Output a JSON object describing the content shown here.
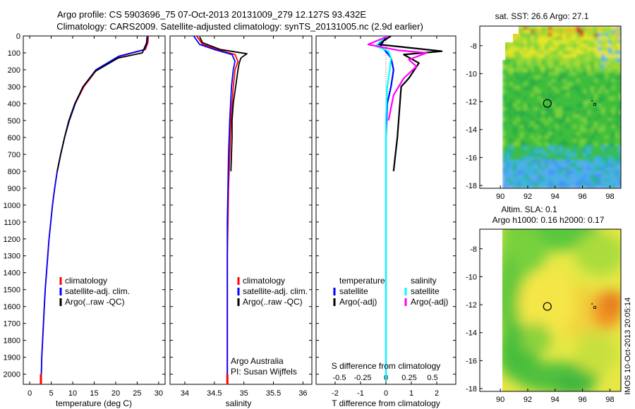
{
  "header": {
    "title_line1": "Argo profile: CS 5903696_75 07-Oct-2013 20131009_279 12.127S 93.432E",
    "title_line2": "Climatology: CARS2009. Satellite-adjusted climatology: synTS_20131005.nc (2.9d earlier)"
  },
  "colors": {
    "climatology": "#ff0000",
    "satellite": "#0000ff",
    "argo": "#000000",
    "salinity_argo": "#ff00ff",
    "salinity_sat": "#00ffff"
  },
  "chart_data": [
    {
      "id": "temperature",
      "type": "line",
      "xlabel": "temperature (deg C)",
      "ylabel": "",
      "xlim": [
        -1.5,
        31.5
      ],
      "ylim": [
        2060,
        0
      ],
      "xticks": [
        0,
        5,
        10,
        15,
        20,
        25,
        30
      ],
      "yticks": [
        0,
        100,
        200,
        300,
        400,
        500,
        600,
        700,
        800,
        900,
        1000,
        1100,
        1200,
        1300,
        1400,
        1500,
        1600,
        1700,
        1800,
        1900,
        2000
      ],
      "series": [
        {
          "name": "climatology",
          "color": "#ff0000",
          "x": [
            27.6,
            27.5,
            26.9,
            21.0,
            15.6,
            12.6,
            10.6,
            9.2,
            8.1,
            7.2,
            6.4,
            5.8,
            5.3,
            4.9,
            4.5,
            4.2,
            3.9,
            3.6,
            3.4,
            3.2,
            3.0,
            2.8,
            2.7,
            2.6
          ],
          "y": [
            0,
            40,
            80,
            120,
            200,
            300,
            400,
            500,
            600,
            700,
            800,
            900,
            1000,
            1100,
            1200,
            1300,
            1400,
            1500,
            1600,
            1700,
            1800,
            1900,
            2000,
            2040
          ]
        },
        {
          "name": "satellite-adj. clim.",
          "color": "#0000ff",
          "x": [
            27.4,
            27.3,
            26.7,
            20.7,
            15.4,
            12.4,
            10.6,
            9.2,
            8.1,
            7.2,
            6.4,
            5.8,
            5.3,
            4.9,
            4.5,
            4.2,
            3.9,
            3.6,
            3.4,
            3.2,
            3.0,
            2.8,
            2.7,
            2.6
          ],
          "y": [
            0,
            40,
            80,
            120,
            200,
            300,
            400,
            500,
            600,
            700,
            800,
            900,
            1000,
            1100,
            1200,
            1300,
            1400,
            1500,
            1600,
            1700,
            1800,
            1900,
            2000,
            2040
          ]
        },
        {
          "name": "Argo(..raw -QC)",
          "color": "#000000",
          "x": [
            27.3,
            27.2,
            26.2,
            20.6,
            15.2,
            12.4,
            10.5,
            9.1,
            8.1,
            7.2,
            6.4
          ],
          "y": [
            5,
            40,
            100,
            130,
            210,
            300,
            400,
            500,
            600,
            700,
            800
          ]
        }
      ],
      "legend": {
        "position": "lower-center",
        "entries": [
          "climatology",
          "satellite-adj. clim.",
          "Argo(..raw -QC)"
        ]
      }
    },
    {
      "id": "salinity",
      "type": "line",
      "xlabel": "salinity",
      "ylabel": "",
      "xlim": [
        33.75,
        36.15
      ],
      "ylim": [
        2060,
        0
      ],
      "xticks": [
        34,
        34.5,
        35,
        35.5,
        36
      ],
      "xtick_labels": [
        "34",
        "34.5",
        "35",
        "35.5",
        "36"
      ],
      "series": [
        {
          "name": "climatology",
          "color": "#ff0000",
          "x": [
            34.2,
            34.3,
            34.55,
            34.85,
            34.9,
            34.85,
            34.82,
            34.78,
            34.76,
            34.74,
            34.73,
            34.72,
            34.72,
            34.72,
            34.72,
            34.72
          ],
          "y": [
            0,
            50,
            80,
            110,
            150,
            200,
            300,
            500,
            700,
            900,
            1100,
            1300,
            1500,
            1700,
            1900,
            2040
          ]
        },
        {
          "name": "satellite-adj. clim.",
          "color": "#0000ff",
          "x": [
            34.15,
            34.25,
            34.5,
            34.8,
            34.85,
            34.82,
            34.79,
            34.76,
            34.74,
            34.73,
            34.72,
            34.72,
            34.72,
            34.72,
            34.72,
            34.72
          ],
          "y": [
            0,
            50,
            80,
            110,
            150,
            200,
            300,
            500,
            700,
            900,
            1100,
            1300,
            1500,
            1700,
            1900,
            2040
          ]
        },
        {
          "name": "Argo(..raw -QC)",
          "color": "#000000",
          "x": [
            34.25,
            34.3,
            34.6,
            35.05,
            34.95,
            34.92,
            34.9,
            34.86,
            34.82,
            34.8,
            34.8,
            34.78
          ],
          "y": [
            5,
            40,
            80,
            105,
            130,
            160,
            200,
            300,
            400,
            500,
            600,
            800
          ]
        }
      ],
      "legend": {
        "position": "lower-center",
        "entries": [
          "climatology",
          "satellite-adj. clim.",
          "Argo(..raw -QC)"
        ]
      },
      "annotations": [
        "Argo Australia",
        "PI: Susan Wijffels"
      ]
    },
    {
      "id": "differences",
      "type": "line",
      "xlabel": "T difference from climatology",
      "xlabel2": "S difference from climatology",
      "xlim": [
        -2.75,
        2.75
      ],
      "ylim": [
        2060,
        0
      ],
      "xticks": [
        -2,
        -1,
        0,
        1,
        2
      ],
      "xticks2": [
        -0.5,
        -0.25,
        0,
        0.25,
        0.5
      ],
      "xtick2_labels": [
        "-0.5",
        "-0.25",
        "0",
        "0.25",
        "0.5"
      ],
      "series": [
        {
          "name": "temperature satellite",
          "color": "#0000ff",
          "x": [
            0.0,
            -0.2,
            0.05,
            0.2,
            0.3,
            0.2,
            0.05,
            0.0,
            0.0,
            0.0,
            0.0
          ],
          "y": [
            0,
            60,
            100,
            130,
            200,
            300,
            400,
            600,
            900,
            1300,
            2040
          ]
        },
        {
          "name": "temperature Argo(-adj)",
          "color": "#000000",
          "x": [
            0.2,
            -0.3,
            2.2,
            0.7,
            1.3,
            0.9,
            0.6,
            0.55,
            0.5,
            0.45,
            0.3
          ],
          "y": [
            0,
            50,
            90,
            110,
            160,
            250,
            300,
            400,
            500,
            600,
            800
          ]
        },
        {
          "name": "salinity satellite",
          "color": "#00ffff",
          "x": [
            0.0,
            -0.4,
            0.1,
            0.2,
            0.15,
            0.05,
            0.0,
            0.0,
            0.0
          ],
          "y": [
            0,
            60,
            90,
            130,
            200,
            300,
            500,
            900,
            2040
          ]
        },
        {
          "name": "salinity Argo(-adj)",
          "color": "#ff00ff",
          "x": [
            0.1,
            -0.7,
            0.5,
            1.6,
            0.9,
            1.2,
            0.7,
            0.3,
            0.1
          ],
          "y": [
            0,
            50,
            85,
            100,
            140,
            180,
            250,
            350,
            500
          ]
        }
      ],
      "legend": {
        "position": "lower-center",
        "headers": [
          "temperature",
          "salinity"
        ],
        "entries": [
          "satellite",
          "Argo(-adj)",
          "satellite",
          "Argo(-adj)"
        ]
      }
    },
    {
      "id": "sst_map",
      "type": "heatmap",
      "title": "sat. SST: 26.6  Argo: 27.1",
      "xlim": [
        88.5,
        98.8
      ],
      "ylim": [
        -18.2,
        -6.6
      ],
      "xticks": [
        90,
        92,
        94,
        96,
        98
      ],
      "yticks": [
        -8,
        -10,
        -12,
        -14,
        -16,
        -18
      ],
      "argo_position": [
        93.432,
        -12.127
      ],
      "other_float": [
        96.9,
        -12.2
      ]
    },
    {
      "id": "sla_map",
      "type": "heatmap",
      "title": "Altim. SLA: 0.1",
      "subtitle": "Argo h1000: 0.16 h2000: 0.17",
      "xlim": [
        88.5,
        98.8
      ],
      "ylim": [
        -18.2,
        -6.6
      ],
      "xticks": [
        90,
        92,
        94,
        96,
        98
      ],
      "yticks": [
        -8,
        -10,
        -12,
        -14,
        -16,
        -18
      ],
      "argo_position": [
        93.432,
        -12.127
      ],
      "other_float": [
        96.9,
        -12.2
      ]
    }
  ],
  "footer": {
    "stamp": "IMOS 10-Oct-2013 20:05:14"
  }
}
